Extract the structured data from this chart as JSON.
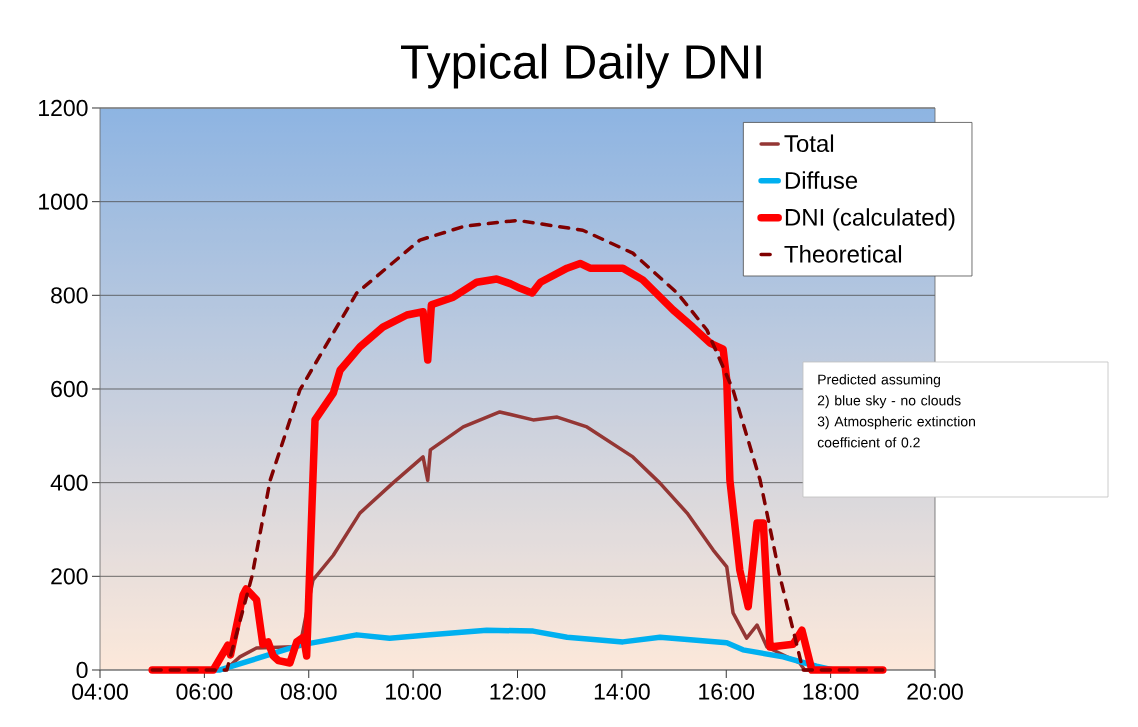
{
  "chart_data": {
    "type": "line",
    "title": "Typical Daily DNI",
    "xlim": [
      4,
      20
    ],
    "ylim": [
      0,
      1200
    ],
    "xticks": [
      {
        "value": 4,
        "label": "04:00"
      },
      {
        "value": 6,
        "label": "06:00"
      },
      {
        "value": 8,
        "label": "08:00"
      },
      {
        "value": 10,
        "label": "10:00"
      },
      {
        "value": 12,
        "label": "12:00"
      },
      {
        "value": 14,
        "label": "14:00"
      },
      {
        "value": 16,
        "label": "16:00"
      },
      {
        "value": 18,
        "label": "18:00"
      },
      {
        "value": 20,
        "label": "20:00"
      }
    ],
    "yticks": [
      0,
      200,
      400,
      600,
      800,
      1000,
      1200
    ],
    "grid": "y",
    "legend": "top right",
    "marker": "none",
    "series": [
      {
        "name": "Total",
        "color": "#943634",
        "line_style": "solid",
        "x": [
          5,
          6.4,
          6.68,
          7.0,
          7.83,
          8.08,
          8.47,
          8.98,
          9.61,
          10.19,
          10.28,
          10.33,
          10.96,
          11.66,
          12.3,
          12.76,
          13.33,
          14.21,
          14.73,
          15.25,
          15.75,
          16.01,
          16.13,
          16.39,
          16.59,
          16.78,
          17.41,
          17.5,
          19
        ],
        "values": [
          0,
          0,
          28,
          47,
          50,
          192,
          245,
          335,
          399,
          455,
          405,
          470,
          519,
          551,
          534,
          540,
          519,
          455,
          399,
          335,
          256,
          220,
          122,
          68,
          96,
          49,
          15,
          0,
          0
        ]
      },
      {
        "name": "Diffuse",
        "color": "#00b0f0",
        "line_style": "solid",
        "x": [
          5,
          6.3,
          7.83,
          8.92,
          9.55,
          10.33,
          11.41,
          12.3,
          12.95,
          14.02,
          14.73,
          16.01,
          16.32,
          17.09,
          17.73,
          18.05,
          19
        ],
        "values": [
          0,
          0,
          53,
          75,
          68,
          75,
          85,
          83,
          70,
          60,
          70,
          58,
          43,
          28,
          8,
          0,
          0
        ]
      },
      {
        "name": "DNI (calculated)",
        "color": "#ff0000",
        "line_style": "solid",
        "x": [
          5,
          6.17,
          6.45,
          6.5,
          6.74,
          6.8,
          7.0,
          7.12,
          7.22,
          7.32,
          7.42,
          7.64,
          7.77,
          7.9,
          7.96,
          8.12,
          8.47,
          8.6,
          8.98,
          9.42,
          9.88,
          10.19,
          10.28,
          10.35,
          10.77,
          11.22,
          11.6,
          11.86,
          12.05,
          12.28,
          12.44,
          12.95,
          13.2,
          13.39,
          14.02,
          14.4,
          14.98,
          15.36,
          15.69,
          15.94,
          16.01,
          16.07,
          16.26,
          16.42,
          16.59,
          16.71,
          16.84,
          17.28,
          17.45,
          17.64,
          19
        ],
        "values": [
          0,
          0,
          53,
          32,
          160,
          173,
          150,
          55,
          60,
          30,
          20,
          15,
          60,
          70,
          30,
          534,
          591,
          640,
          690,
          732,
          758,
          765,
          662,
          780,
          796,
          828,
          835,
          825,
          815,
          805,
          828,
          858,
          868,
          858,
          858,
          833,
          769,
          732,
          698,
          685,
          619,
          405,
          213,
          135,
          314,
          314,
          49,
          55,
          85,
          0,
          0
        ]
      },
      {
        "name": "Theoretical",
        "color": "#800000",
        "line_style": "dashed",
        "x": [
          5,
          6.43,
          6.91,
          7.26,
          7.83,
          8.92,
          10.13,
          11.0,
          12.0,
          13.25,
          14.21,
          15.06,
          15.63,
          16.13,
          16.65,
          17.03,
          17.47,
          19
        ],
        "values": [
          0,
          0,
          199,
          405,
          598,
          805,
          918,
          948,
          960,
          939,
          890,
          805,
          726,
          598,
          405,
          199,
          0,
          0
        ]
      }
    ],
    "annotations": [
      "Predicted assuming",
      "2)  blue sky - no clouds",
      "3)  Atmospheric extinction",
      "coefficient of 0.2"
    ]
  }
}
